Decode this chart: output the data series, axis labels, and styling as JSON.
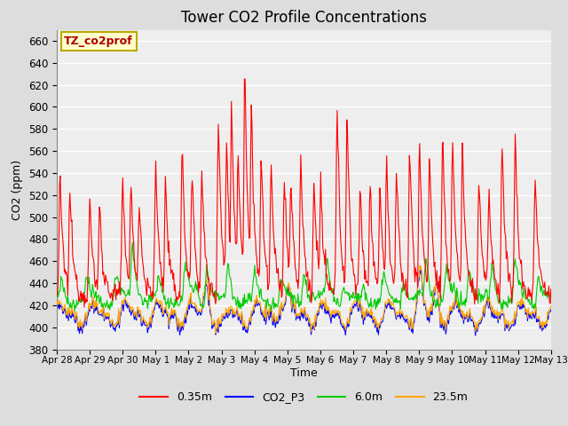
{
  "title": "Tower CO2 Profile Concentrations",
  "xlabel": "Time",
  "ylabel": "CO2 (ppm)",
  "ylim": [
    380,
    670
  ],
  "yticks": [
    380,
    400,
    420,
    440,
    460,
    480,
    500,
    520,
    540,
    560,
    580,
    600,
    620,
    640,
    660
  ],
  "series": {
    "0.35m": {
      "color": "#ff0000",
      "linewidth": 0.8
    },
    "CO2_P3": {
      "color": "#0000ff",
      "linewidth": 0.8
    },
    "6.0m": {
      "color": "#00cc00",
      "linewidth": 0.8
    },
    "23.5m": {
      "color": "#ffa500",
      "linewidth": 0.8
    }
  },
  "legend_label": "TZ_co2prof",
  "legend_facecolor": "#ffffcc",
  "legend_edgecolor": "#bbaa00",
  "bg_color": "#dddddd",
  "plot_bg_color": "#eeeeee",
  "grid_color": "#ffffff",
  "title_fontsize": 12,
  "n_days": 15,
  "n_points": 720
}
